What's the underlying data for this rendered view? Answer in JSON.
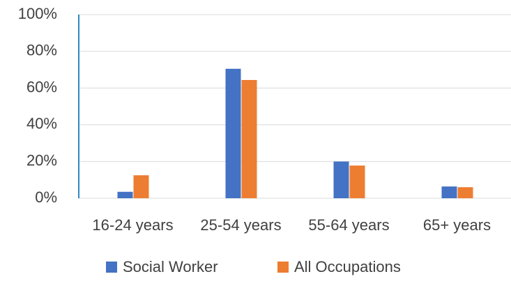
{
  "chart_data": {
    "type": "bar",
    "categories": [
      "16-24 years",
      "25-54 years",
      "55-64 years",
      "65+ years"
    ],
    "series": [
      {
        "name": "Social Worker",
        "color": "#4472c4",
        "values": [
          3.5,
          70.5,
          20,
          6.4
        ]
      },
      {
        "name": "All Occupations",
        "color": "#ed7d31",
        "values": [
          12.5,
          64.4,
          17.8,
          6
        ]
      }
    ],
    "ylim": [
      0,
      100
    ],
    "yticks": [
      {
        "value": 0,
        "label": "0%"
      },
      {
        "value": 20,
        "label": "20%"
      },
      {
        "value": 40,
        "label": "40%"
      },
      {
        "value": 60,
        "label": "60%"
      },
      {
        "value": 80,
        "label": "80%"
      },
      {
        "value": 100,
        "label": "100%"
      }
    ],
    "grid": true,
    "legend": "bottom"
  }
}
